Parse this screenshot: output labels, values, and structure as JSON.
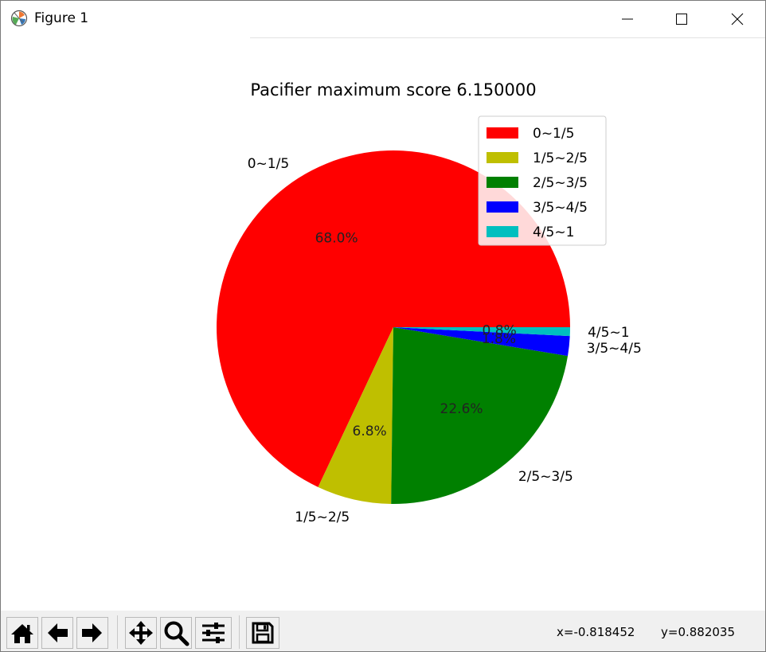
{
  "window": {
    "title": "Figure 1"
  },
  "icons": {
    "app": "matplotlib-logo-icon",
    "minimize": "minimize-icon",
    "maximize": "maximize-icon",
    "close": "close-icon",
    "home": "home-icon",
    "back": "arrow-left-icon",
    "forward": "arrow-right-icon",
    "pan": "pan-move-icon",
    "zoom": "zoom-magnifier-icon",
    "configure": "sliders-icon",
    "save": "save-floppy-icon"
  },
  "statusbar": {
    "x_readout": "x=-0.818452",
    "y_readout": "y=0.882035"
  },
  "chart_data": {
    "type": "pie",
    "title": "Pacifier maximum score 6.150000",
    "labels": [
      "0~1/5",
      "1/5~2/5",
      "2/5~3/5",
      "3/5~4/5",
      "4/5~1"
    ],
    "values": [
      68.0,
      6.8,
      22.6,
      1.8,
      0.8
    ],
    "pct_labels": [
      "68.0%",
      "6.8%",
      "22.6%",
      "1.8%",
      "0.8%"
    ],
    "colors": [
      "#ff0000",
      "#bfbf00",
      "#008000",
      "#0000ff",
      "#00bfbf"
    ],
    "start_angle_deg": 0,
    "direction": "counterclockwise",
    "legend": {
      "placement": "upper-right",
      "entries": [
        "0~1/5",
        "1/5~2/5",
        "2/5~3/5",
        "3/5~4/5",
        "4/5~1"
      ]
    }
  }
}
